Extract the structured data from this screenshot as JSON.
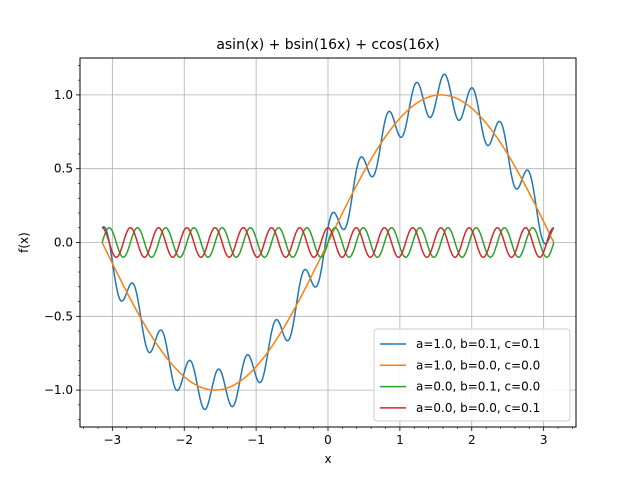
{
  "chart_data": {
    "type": "line",
    "title": "asin(x) + bsin(16x) + ccos(16x)",
    "xlabel": "x",
    "ylabel": "f(x)",
    "xlim": [
      -3.45,
      3.45
    ],
    "ylim": [
      -1.25,
      1.25
    ],
    "x_ticks": [
      -3,
      -2,
      -1,
      0,
      1,
      2,
      3
    ],
    "x_tick_labels": [
      "−3",
      "−2",
      "−1",
      "0",
      "1",
      "2",
      "3"
    ],
    "y_ticks": [
      -1.0,
      -0.5,
      0.0,
      0.5,
      1.0
    ],
    "y_tick_labels": [
      "−1.0",
      "−0.5",
      "0.0",
      "0.5",
      "1.0"
    ],
    "grid": true,
    "minor_ticks": true,
    "legend_position": "lower-right",
    "x_range": [
      -3.14159,
      3.14159
    ],
    "formula": "f(x) = a·sin(x) + b·sin(16x) + c·cos(16x)",
    "series": [
      {
        "name": "a=1.0, b=0.1, c=0.1",
        "a": 1.0,
        "b": 0.1,
        "c": 0.1,
        "color": "#1f77b4"
      },
      {
        "name": "a=1.0, b=0.0, c=0.0",
        "a": 1.0,
        "b": 0.0,
        "c": 0.0,
        "color": "#ff7f0e"
      },
      {
        "name": "a=0.0, b=0.1, c=0.0",
        "a": 0.0,
        "b": 0.1,
        "c": 0.0,
        "color": "#2ca02c"
      },
      {
        "name": "a=0.0, b=0.0, c=0.1",
        "a": 0.0,
        "b": 0.0,
        "c": 0.1,
        "color": "#d62728"
      }
    ]
  }
}
